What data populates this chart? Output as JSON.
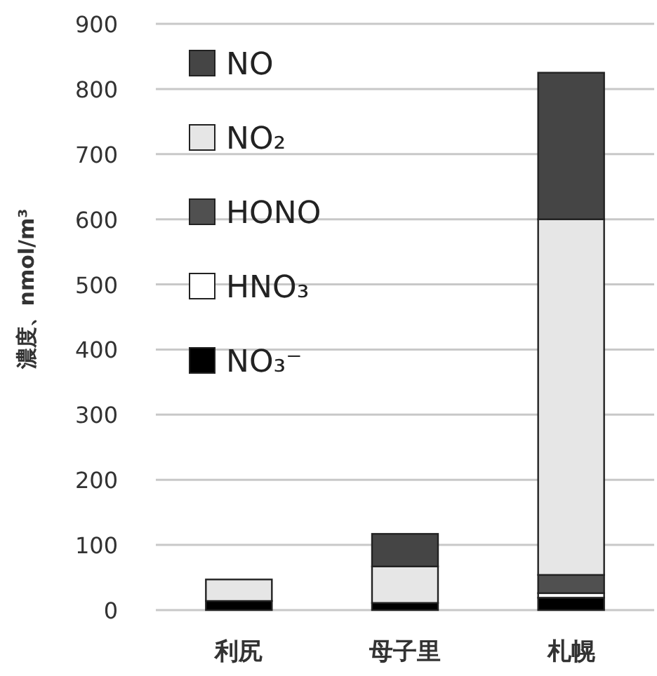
{
  "chart_data": {
    "type": "bar",
    "stacked": true,
    "ylabel": "濃度、nmol/m³",
    "categories": [
      "利尻",
      "母子里",
      "札幌"
    ],
    "series": [
      {
        "name": "NO₃⁻",
        "color": "#000000",
        "values": [
          14,
          11,
          19
        ]
      },
      {
        "name": "HNO₃",
        "color": "#ffffff",
        "values": [
          0,
          0,
          7
        ]
      },
      {
        "name": "HONO",
        "color": "#505050",
        "values": [
          0,
          0,
          28
        ]
      },
      {
        "name": "NO₂",
        "color": "#e6e6e6",
        "values": [
          33,
          56,
          546
        ]
      },
      {
        "name": "NO",
        "color": "#454545",
        "values": [
          0,
          50,
          225
        ]
      }
    ],
    "ylim": [
      0,
      900
    ],
    "yticks": [
      0,
      100,
      200,
      300,
      400,
      500,
      600,
      700,
      800,
      900
    ],
    "grid": "y",
    "legend": "top left"
  }
}
